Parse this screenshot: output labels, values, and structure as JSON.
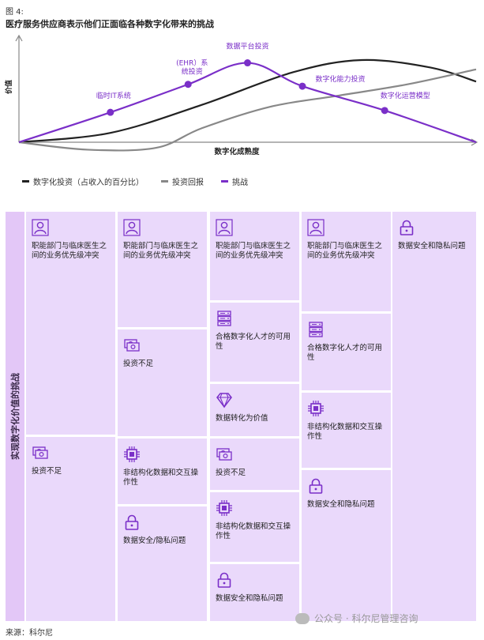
{
  "figure": {
    "label": "图 4:",
    "title": "医疗服务供应商表示他们正面临各种数字化带来的挑战",
    "source": "来源：科尔尼",
    "watermark": "公众号 · 科尔尼管理咨询"
  },
  "chart_data": {
    "type": "line",
    "xlabel": "数字化成熟度",
    "ylabel": "价值",
    "series": [
      {
        "name": "数字化投资（占收入的百分比）",
        "color": "#222222",
        "x": [
          0,
          20,
          40,
          60,
          75,
          90,
          100
        ],
        "y": [
          0,
          10,
          40,
          75,
          88,
          80,
          65
        ]
      },
      {
        "name": "投资回报",
        "color": "#888888",
        "x": [
          0,
          15,
          30,
          40,
          55,
          70,
          85,
          100
        ],
        "y": [
          0,
          -8,
          -6,
          15,
          38,
          50,
          62,
          78
        ]
      },
      {
        "name": "挑战",
        "color": "#7a2fc8",
        "x": [
          0,
          20,
          37,
          50,
          62,
          80,
          100
        ],
        "y": [
          0,
          32,
          62,
          85,
          60,
          34,
          0
        ]
      }
    ],
    "annotations": [
      {
        "label": "临时IT系统",
        "x": 20,
        "y": 32
      },
      {
        "label": "(EHR）系统投资",
        "x": 37,
        "y": 62
      },
      {
        "label": "数据平台投资",
        "x": 50,
        "y": 85
      },
      {
        "label": "数字化能力投资",
        "x": 62,
        "y": 60
      },
      {
        "label": "数字化运营模型",
        "x": 80,
        "y": 34
      }
    ],
    "xlim": [
      0,
      100
    ],
    "ylim": [
      -20,
      110
    ]
  },
  "matrix": {
    "side_label": "实现数字化价值的挑战",
    "tiles": [
      {
        "col": 0,
        "icon": "person-icon",
        "label": "职能部门与临床医生之间的业务优先级冲突"
      },
      {
        "col": 0,
        "icon": "money-icon",
        "label": "投资不足"
      },
      {
        "col": 1,
        "icon": "person-icon",
        "label": "职能部门与临床医生之间的业务优先级冲突"
      },
      {
        "col": 1,
        "icon": "money-icon",
        "label": "投资不足"
      },
      {
        "col": 1,
        "icon": "chip-icon",
        "label": "非结构化数据和交互操作性"
      },
      {
        "col": 1,
        "icon": "lock-icon",
        "label": "数据安全/隐私问题"
      },
      {
        "col": 2,
        "icon": "person-icon",
        "label": "职能部门与临床医生之间的业务优先级冲突"
      },
      {
        "col": 2,
        "icon": "server-icon",
        "label": "合格数字化人才的可用性"
      },
      {
        "col": 2,
        "icon": "diamond-icon",
        "label": "数据转化为价值"
      },
      {
        "col": 2,
        "icon": "money-icon",
        "label": "投资不足"
      },
      {
        "col": 2,
        "icon": "chip-icon",
        "label": "非结构化数据和交互操作性"
      },
      {
        "col": 2,
        "icon": "lock-icon",
        "label": "数据安全和隐私问题"
      },
      {
        "col": 3,
        "icon": "person-icon",
        "label": "职能部门与临床医生之间的业务优先级冲突"
      },
      {
        "col": 3,
        "icon": "server-icon",
        "label": "合格数字化人才的可用性"
      },
      {
        "col": 3,
        "icon": "chip-icon",
        "label": "非结构化数据和交互操作性"
      },
      {
        "col": 3,
        "icon": "lock-icon",
        "label": "数据安全和隐私问题"
      },
      {
        "col": 4,
        "icon": "lock-icon",
        "label": "数据安全和隐私问题"
      }
    ]
  }
}
